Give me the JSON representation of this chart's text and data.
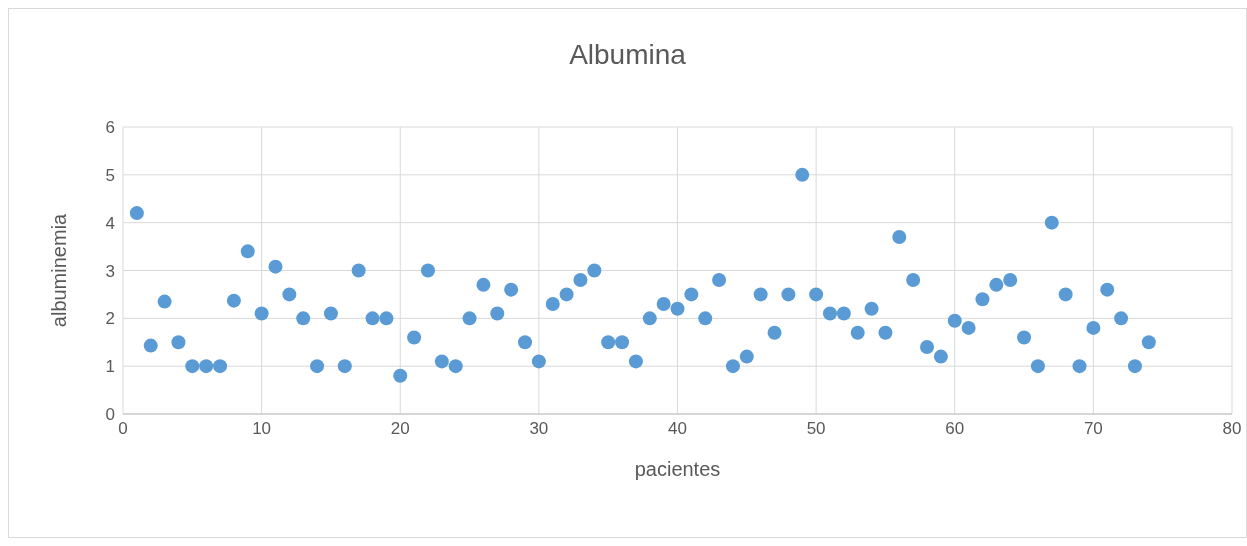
{
  "chart_data": {
    "type": "scatter",
    "title": "Albumina",
    "xlabel": "pacientes",
    "ylabel": "albuminemia",
    "x": [
      1,
      2,
      3,
      4,
      5,
      6,
      7,
      8,
      9,
      10,
      11,
      12,
      13,
      14,
      15,
      16,
      17,
      18,
      19,
      20,
      21,
      22,
      23,
      24,
      25,
      26,
      27,
      28,
      29,
      30,
      31,
      32,
      33,
      34,
      35,
      36,
      37,
      38,
      39,
      40,
      41,
      42,
      43,
      44,
      45,
      46,
      47,
      48,
      49,
      50,
      51,
      52,
      53,
      54,
      55,
      56,
      57,
      58,
      59,
      60,
      61,
      62,
      63,
      64,
      65,
      66,
      67,
      68,
      69,
      70,
      71,
      72,
      73,
      74
    ],
    "series": [
      {
        "color": "#5b9bd5",
        "values": [
          4.2,
          1.43,
          2.35,
          1.5,
          1,
          1,
          1,
          2.37,
          3.4,
          2.1,
          3.08,
          2.5,
          2,
          1,
          2.1,
          1,
          3,
          2,
          2,
          0.8,
          1.6,
          3,
          1.1,
          1,
          2,
          2.7,
          2.1,
          2.6,
          1.5,
          1.1,
          2.3,
          2.5,
          2.8,
          3,
          1.5,
          1.5,
          1.1,
          2,
          2.3,
          2.2,
          2.5,
          2,
          2.8,
          1,
          1.2,
          2.5,
          1.7,
          2.5,
          5,
          2.5,
          2.1,
          2.1,
          1.7,
          2.2,
          1.7,
          3.7,
          2.8,
          1.4,
          1.2,
          1.95,
          1.8,
          2.4,
          2.7,
          2.8,
          1.6,
          1,
          4,
          2.5,
          1,
          1.8,
          2.6,
          2,
          1,
          1.5
        ]
      }
    ],
    "xlim": [
      0,
      80
    ],
    "xticks": [
      0,
      10,
      20,
      30,
      40,
      50,
      60,
      70,
      80
    ],
    "ylim": [
      0,
      6
    ],
    "yticks": [
      0,
      1,
      2,
      3,
      4,
      5,
      6
    ],
    "grid": true,
    "marker": "circle",
    "legend": false
  }
}
